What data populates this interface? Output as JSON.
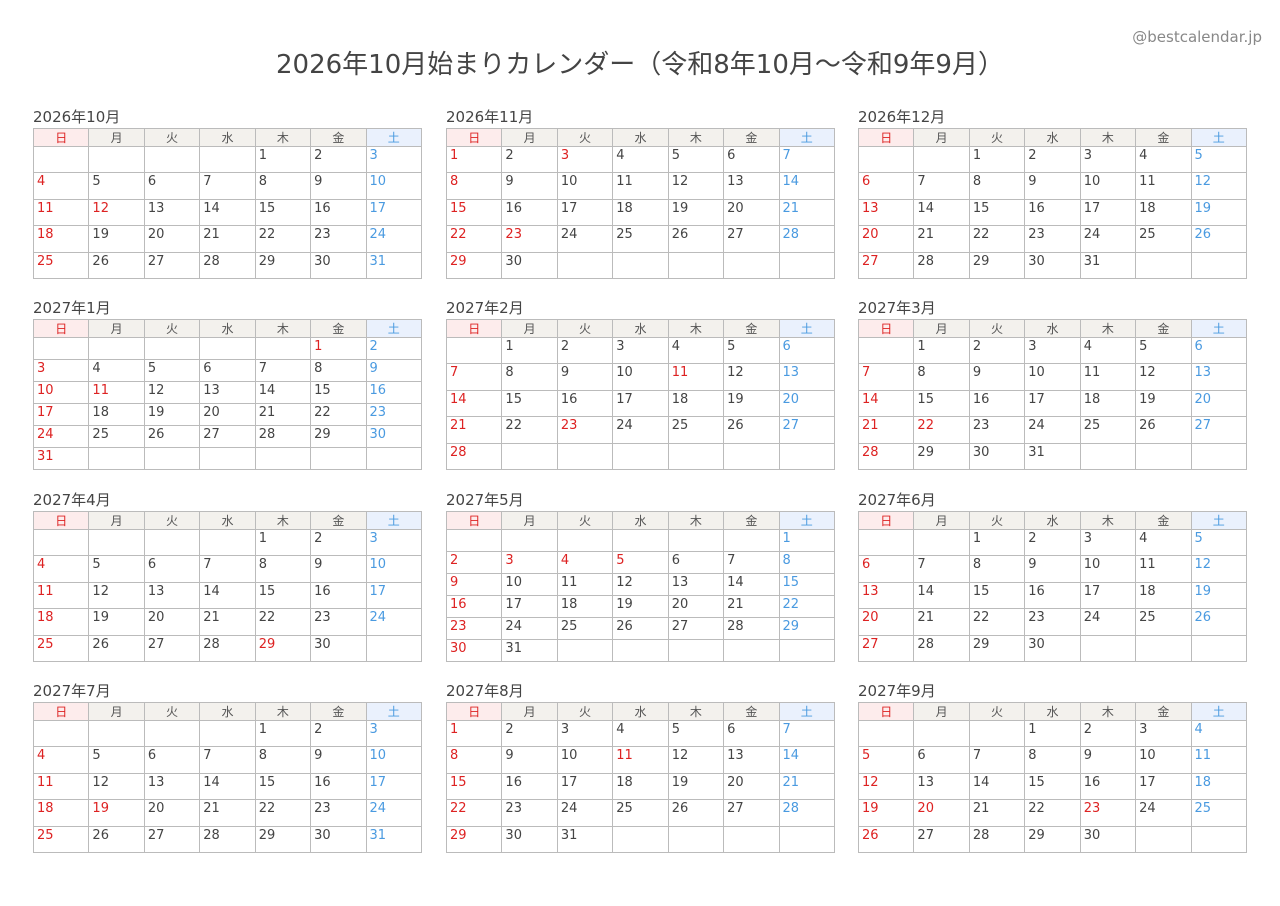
{
  "title": "2026年10月始まりカレンダー（令和8年10月〜令和9年9月）",
  "site": "@bestcalendar.jp",
  "weekdays": [
    "日",
    "月",
    "火",
    "水",
    "木",
    "金",
    "土"
  ],
  "colors": {
    "holiday": "#dd2222",
    "saturday": "#4a9ae0",
    "header": "#f3f1ed",
    "sunday_header": "#fdecec",
    "saturday_header": "#eaf1fd"
  },
  "months": [
    {
      "label": "2026年10月",
      "weeks": [
        [
          null,
          null,
          null,
          null,
          1,
          2,
          3
        ],
        [
          4,
          5,
          6,
          7,
          8,
          9,
          10
        ],
        [
          11,
          12,
          13,
          14,
          15,
          16,
          17
        ],
        [
          18,
          19,
          20,
          21,
          22,
          23,
          24
        ],
        [
          25,
          26,
          27,
          28,
          29,
          30,
          31
        ]
      ],
      "holidays": [
        12
      ]
    },
    {
      "label": "2026年11月",
      "weeks": [
        [
          1,
          2,
          3,
          4,
          5,
          6,
          7
        ],
        [
          8,
          9,
          10,
          11,
          12,
          13,
          14
        ],
        [
          15,
          16,
          17,
          18,
          19,
          20,
          21
        ],
        [
          22,
          23,
          24,
          25,
          26,
          27,
          28
        ],
        [
          29,
          30,
          null,
          null,
          null,
          null,
          null
        ]
      ],
      "holidays": [
        3,
        23
      ]
    },
    {
      "label": "2026年12月",
      "weeks": [
        [
          null,
          null,
          1,
          2,
          3,
          4,
          5
        ],
        [
          6,
          7,
          8,
          9,
          10,
          11,
          12
        ],
        [
          13,
          14,
          15,
          16,
          17,
          18,
          19
        ],
        [
          20,
          21,
          22,
          23,
          24,
          25,
          26
        ],
        [
          27,
          28,
          29,
          30,
          31,
          null,
          null
        ]
      ],
      "holidays": []
    },
    {
      "label": "2027年1月",
      "weeks": [
        [
          null,
          null,
          null,
          null,
          null,
          1,
          2
        ],
        [
          3,
          4,
          5,
          6,
          7,
          8,
          9
        ],
        [
          10,
          11,
          12,
          13,
          14,
          15,
          16
        ],
        [
          17,
          18,
          19,
          20,
          21,
          22,
          23
        ],
        [
          24,
          25,
          26,
          27,
          28,
          29,
          30
        ],
        [
          31,
          null,
          null,
          null,
          null,
          null,
          null
        ]
      ],
      "holidays": [
        1,
        11
      ]
    },
    {
      "label": "2027年2月",
      "weeks": [
        [
          null,
          1,
          2,
          3,
          4,
          5,
          6
        ],
        [
          7,
          8,
          9,
          10,
          11,
          12,
          13
        ],
        [
          14,
          15,
          16,
          17,
          18,
          19,
          20
        ],
        [
          21,
          22,
          23,
          24,
          25,
          26,
          27
        ],
        [
          28,
          null,
          null,
          null,
          null,
          null,
          null
        ]
      ],
      "holidays": [
        11,
        23
      ]
    },
    {
      "label": "2027年3月",
      "weeks": [
        [
          null,
          1,
          2,
          3,
          4,
          5,
          6
        ],
        [
          7,
          8,
          9,
          10,
          11,
          12,
          13
        ],
        [
          14,
          15,
          16,
          17,
          18,
          19,
          20
        ],
        [
          21,
          22,
          23,
          24,
          25,
          26,
          27
        ],
        [
          28,
          29,
          30,
          31,
          null,
          null,
          null
        ]
      ],
      "holidays": [
        22
      ]
    },
    {
      "label": "2027年4月",
      "weeks": [
        [
          null,
          null,
          null,
          null,
          1,
          2,
          3
        ],
        [
          4,
          5,
          6,
          7,
          8,
          9,
          10
        ],
        [
          11,
          12,
          13,
          14,
          15,
          16,
          17
        ],
        [
          18,
          19,
          20,
          21,
          22,
          23,
          24
        ],
        [
          25,
          26,
          27,
          28,
          29,
          30,
          null
        ]
      ],
      "holidays": [
        29
      ]
    },
    {
      "label": "2027年5月",
      "weeks": [
        [
          null,
          null,
          null,
          null,
          null,
          null,
          1
        ],
        [
          2,
          3,
          4,
          5,
          6,
          7,
          8
        ],
        [
          9,
          10,
          11,
          12,
          13,
          14,
          15
        ],
        [
          16,
          17,
          18,
          19,
          20,
          21,
          22
        ],
        [
          23,
          24,
          25,
          26,
          27,
          28,
          29
        ],
        [
          30,
          31,
          null,
          null,
          null,
          null,
          null
        ]
      ],
      "holidays": [
        3,
        4,
        5
      ]
    },
    {
      "label": "2027年6月",
      "weeks": [
        [
          null,
          null,
          1,
          2,
          3,
          4,
          5
        ],
        [
          6,
          7,
          8,
          9,
          10,
          11,
          12
        ],
        [
          13,
          14,
          15,
          16,
          17,
          18,
          19
        ],
        [
          20,
          21,
          22,
          23,
          24,
          25,
          26
        ],
        [
          27,
          28,
          29,
          30,
          null,
          null,
          null
        ]
      ],
      "holidays": []
    },
    {
      "label": "2027年7月",
      "weeks": [
        [
          null,
          null,
          null,
          null,
          1,
          2,
          3
        ],
        [
          4,
          5,
          6,
          7,
          8,
          9,
          10
        ],
        [
          11,
          12,
          13,
          14,
          15,
          16,
          17
        ],
        [
          18,
          19,
          20,
          21,
          22,
          23,
          24
        ],
        [
          25,
          26,
          27,
          28,
          29,
          30,
          31
        ]
      ],
      "holidays": [
        19
      ]
    },
    {
      "label": "2027年8月",
      "weeks": [
        [
          1,
          2,
          3,
          4,
          5,
          6,
          7
        ],
        [
          8,
          9,
          10,
          11,
          12,
          13,
          14
        ],
        [
          15,
          16,
          17,
          18,
          19,
          20,
          21
        ],
        [
          22,
          23,
          24,
          25,
          26,
          27,
          28
        ],
        [
          29,
          30,
          31,
          null,
          null,
          null,
          null
        ]
      ],
      "holidays": [
        11
      ]
    },
    {
      "label": "2027年9月",
      "weeks": [
        [
          null,
          null,
          null,
          1,
          2,
          3,
          4
        ],
        [
          5,
          6,
          7,
          8,
          9,
          10,
          11
        ],
        [
          12,
          13,
          14,
          15,
          16,
          17,
          18
        ],
        [
          19,
          20,
          21,
          22,
          23,
          24,
          25
        ],
        [
          26,
          27,
          28,
          29,
          30,
          null,
          null
        ]
      ],
      "holidays": [
        20,
        23
      ]
    }
  ]
}
